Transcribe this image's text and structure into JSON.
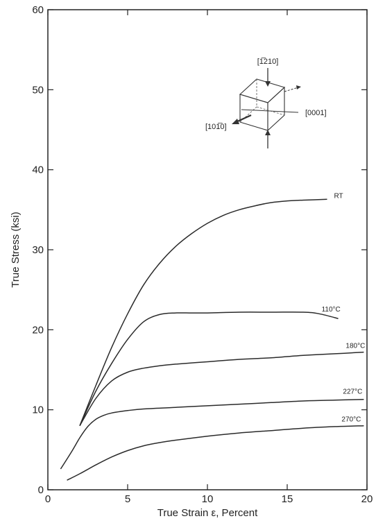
{
  "chart_data": {
    "type": "line",
    "title": "",
    "xlabel": "True Strain ε, Percent",
    "ylabel": "True Stress (ksi)",
    "xlim": [
      0,
      20
    ],
    "ylim": [
      0,
      60
    ],
    "xticks": [
      0,
      5,
      10,
      15,
      20
    ],
    "yticks": [
      0,
      10,
      20,
      30,
      40,
      50,
      60
    ],
    "grid": false,
    "series": [
      {
        "name": "RT",
        "x": [
          2.0,
          3.0,
          4.0,
          5.0,
          6.0,
          7.0,
          8.0,
          9.0,
          10.0,
          11.0,
          12.0,
          13.0,
          14.0,
          15.0,
          16.0,
          17.5
        ],
        "y": [
          8.0,
          13.0,
          17.8,
          22.0,
          25.6,
          28.3,
          30.4,
          32.0,
          33.3,
          34.3,
          35.0,
          35.5,
          35.9,
          36.1,
          36.2,
          36.3
        ]
      },
      {
        "name": "110°C",
        "x": [
          2.0,
          3.0,
          4.0,
          5.0,
          6.0,
          7.0,
          8.0,
          9.0,
          10.0,
          12.0,
          14.0,
          16.0,
          17.0,
          18.2
        ],
        "y": [
          8.0,
          12.3,
          15.8,
          18.8,
          21.0,
          21.9,
          22.1,
          22.1,
          22.1,
          22.2,
          22.2,
          22.2,
          22.0,
          21.4
        ]
      },
      {
        "name": "180°C",
        "x": [
          2.0,
          3.0,
          4.0,
          5.0,
          6.0,
          7.0,
          8.0,
          10.0,
          12.0,
          14.0,
          16.0,
          18.0,
          19.8
        ],
        "y": [
          8.0,
          11.4,
          13.6,
          14.7,
          15.2,
          15.5,
          15.7,
          16.0,
          16.3,
          16.5,
          16.8,
          17.0,
          17.2
        ]
      },
      {
        "name": "227°C",
        "x": [
          0.8,
          1.5,
          2.0,
          2.5,
          3.0,
          3.5,
          4.0,
          5.0,
          6.0,
          8.0,
          10.0,
          12.0,
          14.0,
          16.0,
          18.0,
          19.8
        ],
        "y": [
          2.6,
          4.8,
          6.5,
          7.9,
          8.8,
          9.3,
          9.6,
          9.9,
          10.1,
          10.3,
          10.5,
          10.7,
          10.9,
          11.1,
          11.2,
          11.3
        ]
      },
      {
        "name": "270°C",
        "x": [
          1.2,
          2.0,
          3.0,
          4.0,
          5.0,
          6.0,
          7.0,
          8.0,
          10.0,
          12.0,
          14.0,
          16.0,
          18.0,
          19.8
        ],
        "y": [
          1.2,
          2.0,
          3.1,
          4.1,
          4.9,
          5.5,
          5.9,
          6.2,
          6.7,
          7.1,
          7.4,
          7.7,
          7.9,
          8.0
        ]
      }
    ],
    "annotations": [
      "[1̅210]",
      "[101̅0]",
      "[0001]"
    ]
  }
}
